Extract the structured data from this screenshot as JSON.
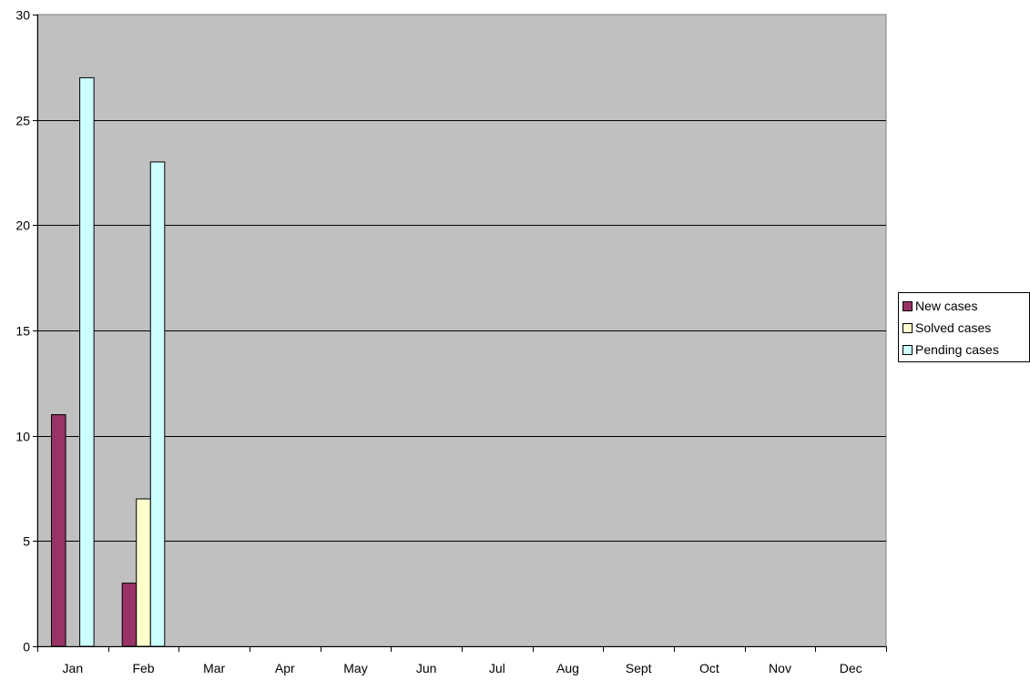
{
  "chart_data": {
    "type": "bar",
    "categories": [
      "Jan",
      "Feb",
      "Mar",
      "Apr",
      "May",
      "Jun",
      "Jul",
      "Aug",
      "Sept",
      "Oct",
      "Nov",
      "Dec"
    ],
    "series": [
      {
        "name": "New cases",
        "color": "#993366",
        "values": [
          11,
          3,
          null,
          null,
          null,
          null,
          null,
          null,
          null,
          null,
          null,
          null
        ]
      },
      {
        "name": "Solved cases",
        "color": "#ffffcc",
        "values": [
          0,
          7,
          null,
          null,
          null,
          null,
          null,
          null,
          null,
          null,
          null,
          null
        ]
      },
      {
        "name": "Pending cases",
        "color": "#ccffff",
        "values": [
          27,
          23,
          null,
          null,
          null,
          null,
          null,
          null,
          null,
          null,
          null,
          null
        ]
      }
    ],
    "ylim": [
      0,
      30
    ],
    "yticks": [
      "0",
      "5",
      "10",
      "15",
      "20",
      "25",
      "30"
    ],
    "grid": true,
    "plot_background": "#c0c0c0",
    "legend_position": "right"
  }
}
